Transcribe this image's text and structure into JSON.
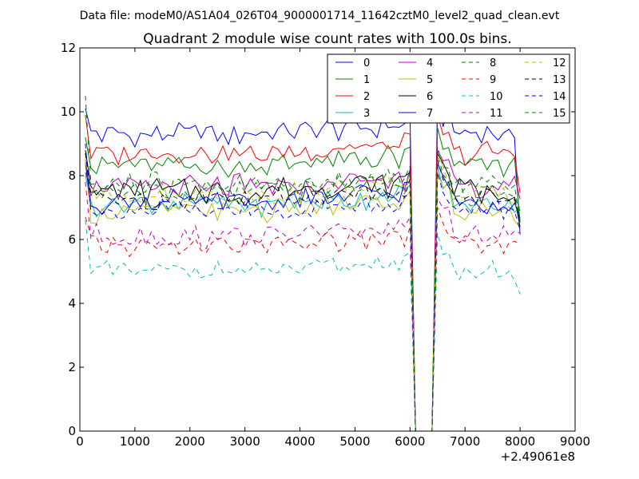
{
  "header": {
    "suptitle": "Data file: modeM0/AS1A04_026T04_9000001714_11642cztM0_level2_quad_clean.evt"
  },
  "chart_data": {
    "type": "line",
    "title": "Quadrant 2 module wise count rates with 100.0s bins.",
    "xlabel": "",
    "ylabel": "",
    "x_offset_label": "+2.49061e8",
    "xlim": [
      0,
      9000
    ],
    "ylim": [
      0,
      12
    ],
    "xticks": [
      0,
      1000,
      2000,
      3000,
      4000,
      5000,
      6000,
      7000,
      8000,
      9000
    ],
    "yticks": [
      0,
      2,
      4,
      6,
      8,
      10,
      12
    ],
    "x_start": 100,
    "x_step": 100,
    "gap": {
      "drop_from": 6000,
      "zero_start": 6200,
      "zero_end": 6300,
      "recover_at": 6500
    },
    "legend": {
      "position": "top-right",
      "columns": 4
    },
    "series": [
      {
        "name": "0",
        "color": "#0000ff",
        "dash": "solid",
        "level": 9.3,
        "amp": 0.35,
        "end": 6.5,
        "first": 10.1
      },
      {
        "name": "1",
        "color": "#008000",
        "dash": "solid",
        "level": 8.3,
        "amp": 0.4,
        "end": 6.6,
        "first": 9.2
      },
      {
        "name": "2",
        "color": "#ff0000",
        "dash": "solid",
        "level": 8.7,
        "amp": 0.35,
        "end": 7.7,
        "first": 9.9
      },
      {
        "name": "3",
        "color": "#00bfbf",
        "dash": "solid",
        "level": 7.1,
        "amp": 0.35,
        "end": 6.9,
        "first": 8.0
      },
      {
        "name": "4",
        "color": "#bf00bf",
        "dash": "solid",
        "level": 7.6,
        "amp": 0.4,
        "end": 6.9,
        "first": 8.5
      },
      {
        "name": "5",
        "color": "#bfbf00",
        "dash": "solid",
        "level": 6.9,
        "amp": 0.4,
        "end": 6.6,
        "first": 8.6
      },
      {
        "name": "6",
        "color": "#000000",
        "dash": "solid",
        "level": 7.5,
        "amp": 0.4,
        "end": 6.3,
        "first": 8.8
      },
      {
        "name": "7",
        "color": "#0000ff",
        "dash": "solid",
        "level": 7.2,
        "amp": 0.35,
        "end": 6.8,
        "first": 8.4
      },
      {
        "name": "8",
        "color": "#008000",
        "dash": "dashed",
        "level": 7.5,
        "amp": 0.4,
        "end": 6.7,
        "first": 8.1
      },
      {
        "name": "9",
        "color": "#ff0000",
        "dash": "dashed",
        "level": 5.8,
        "amp": 0.35,
        "end": 5.8,
        "first": 6.7
      },
      {
        "name": "10",
        "color": "#00bfbf",
        "dash": "dashed",
        "level": 5.0,
        "amp": 0.3,
        "end": 4.2,
        "first": 6.6
      },
      {
        "name": "11",
        "color": "#bf00bf",
        "dash": "dashed",
        "level": 6.1,
        "amp": 0.35,
        "end": 5.9,
        "first": 7.8
      },
      {
        "name": "12",
        "color": "#bfbf00",
        "dash": "dashed",
        "level": 7.4,
        "amp": 0.35,
        "end": 6.9,
        "first": 8.4
      },
      {
        "name": "13",
        "color": "#000000",
        "dash": "dashed",
        "level": 7.3,
        "amp": 0.35,
        "end": 6.5,
        "first": 8.7
      },
      {
        "name": "14",
        "color": "#0000ff",
        "dash": "dashed",
        "level": 6.9,
        "amp": 0.35,
        "end": 6.1,
        "first": 9.0
      },
      {
        "name": "15",
        "color": "#008000",
        "dash": "dashed",
        "level": 7.7,
        "amp": 0.4,
        "end": 6.4,
        "first": 10.5
      }
    ]
  }
}
